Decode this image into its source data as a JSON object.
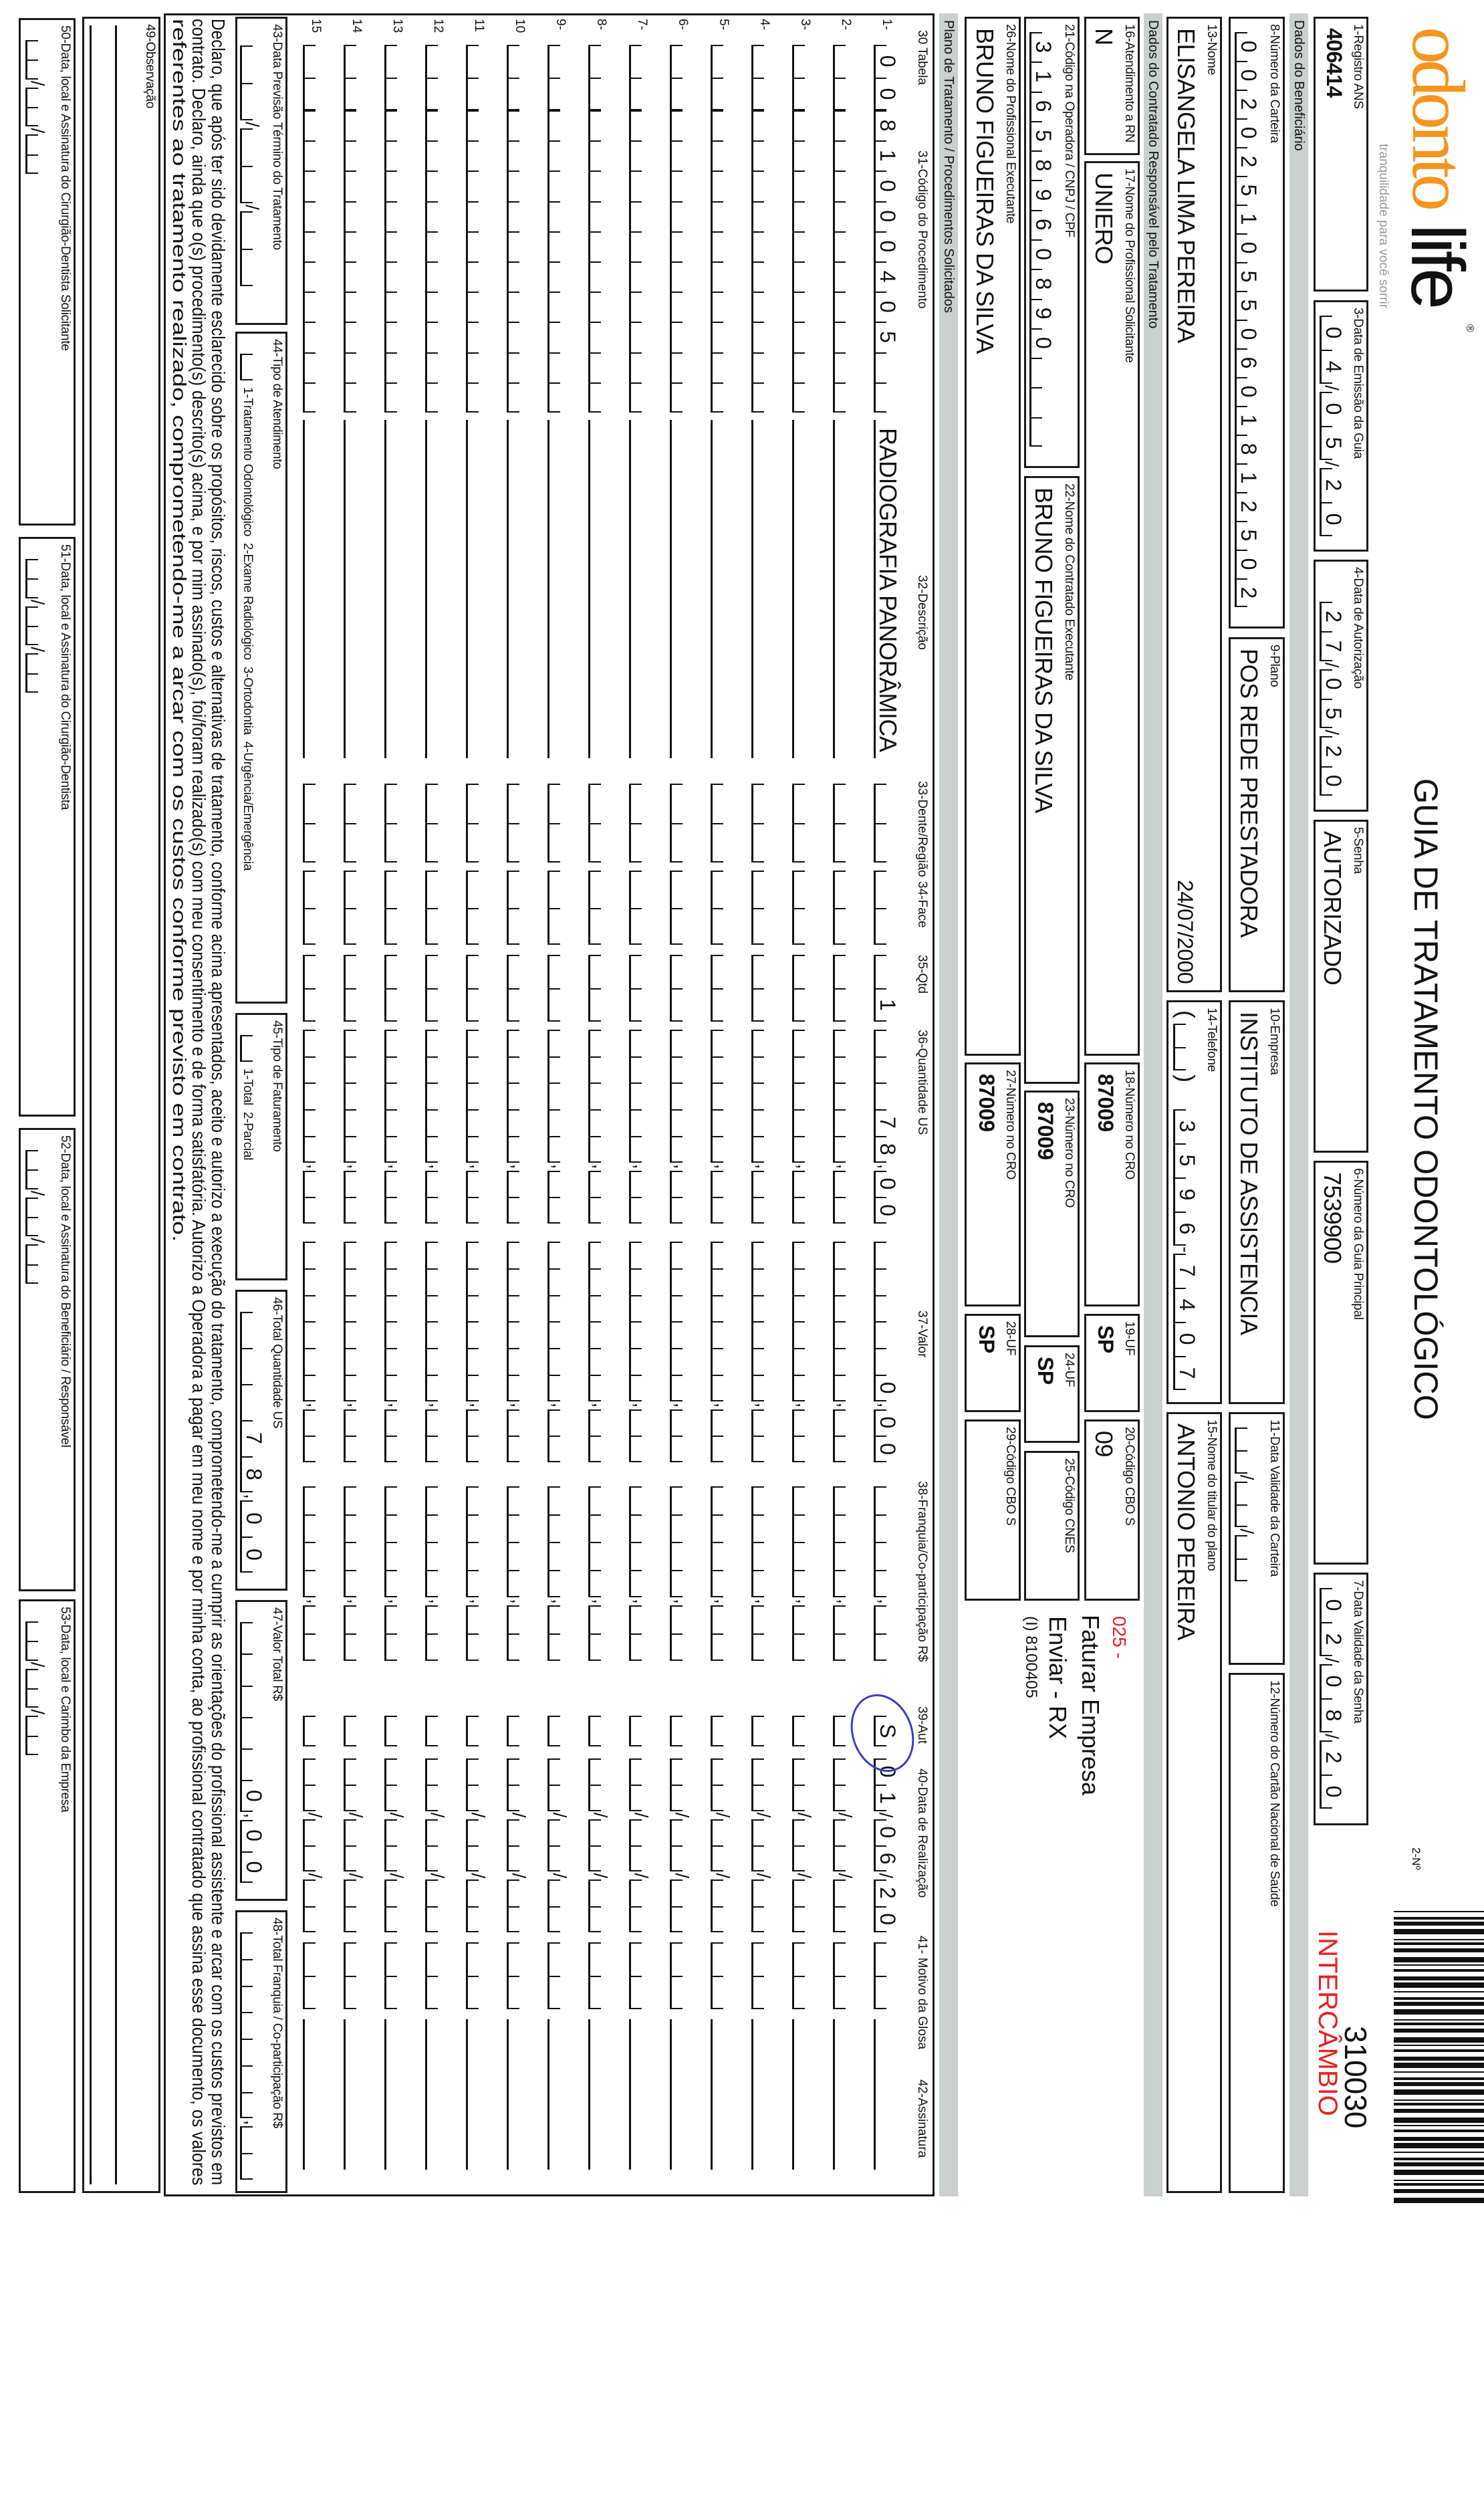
{
  "header": {
    "logo_brand_part1": "odonto",
    "logo_brand_part2": "life",
    "logo_registered": "®",
    "logo_tagline": "tranquilidade para você sorrir",
    "title": "GUIA DE TRATAMENTO ODONTOLÓGICO",
    "guide_number_label": "2-Nº",
    "guide_number": "310030",
    "exchange_label": "INTERCÂMBIO"
  },
  "colors": {
    "brand_orange": "#f7941d",
    "band_gray": "#c9d0cd",
    "stamp_red": "#e8201e",
    "pen_blue": "#3a3fc4"
  },
  "guide": {
    "registro_ans": {
      "label": "1-Registro ANS",
      "value": "406414"
    },
    "data_emissao": {
      "label": "3-Data de Emissão da Guia",
      "value": "04/05/20"
    },
    "data_autorizacao": {
      "label": "4-Data de Autorização",
      "value": "27/05/20"
    },
    "senha": {
      "label": "5-Senha",
      "value": "AUTORIZADO"
    },
    "guia_principal": {
      "label": "6-Número da Guia Principal",
      "value": "7539900"
    },
    "validade_senha": {
      "label": "7-Data Validade da Senha",
      "value": "02/08/20"
    }
  },
  "beneficiario": {
    "section_title": "Dados do Beneficiário",
    "carteira": {
      "label": "8-Número da Carteira",
      "value": "00202510550601812502"
    },
    "plano": {
      "label": "9-Plano",
      "value": "POS REDE PRESTADORA"
    },
    "empresa": {
      "label": "10-Empresa",
      "value": "INSTITUTO DE ASSISTENCIA"
    },
    "validade_carteira": {
      "label": "11-Data Validade da Carteira",
      "value": ""
    },
    "cns": {
      "label": "12-Número do Cartão Nacional de Saúde",
      "value": ""
    },
    "nome": {
      "label": "13-Nome",
      "value": "ELISANGELA LIMA PEREIRA",
      "birth_date": "24/07/2000"
    },
    "telefone": {
      "label": "14-Telefone",
      "ddd": "",
      "value": "3596-7407",
      "open_paren": "(",
      "close_paren": ")"
    },
    "titular": {
      "label": "15-Nome do titular do plano",
      "value": "ANTONIO PEREIRA"
    }
  },
  "contratado": {
    "section_title": "Dados do Contratado Responsável pelo Tratamento",
    "atendimento_rn": {
      "label": "16-Atendimento a RN",
      "value": "N"
    },
    "profissional_solicitante": {
      "label": "17-Nome do Profissional Solicitante",
      "value": "UNIERO"
    },
    "cro_solicitante": {
      "label": "18-Número no CRO",
      "value": "87009"
    },
    "uf_solicitante": {
      "label": "19-UF",
      "value": "SP"
    },
    "cbo_solicitante": {
      "label": "20-Código CBO S",
      "value": "09"
    },
    "codigo_operadora": {
      "label": "21-Código na Operadora / CNPJ / CPF",
      "value": "31658960890"
    },
    "contratado_executante": {
      "label": "22-Nome do Contratado Executante",
      "value": "BRUNO FIGUEIRAS DA SILVA"
    },
    "cro_contratado": {
      "label": "23-Número no CRO",
      "value": "87009"
    },
    "uf_contratado": {
      "label": "24-UF",
      "value": "SP"
    },
    "cnes": {
      "label": "25-Código CNES",
      "value": ""
    },
    "profissional_executante": {
      "label": "26-Nome do Profissional Executante",
      "value": "BRUNO FIGUEIRAS DA SILVA"
    },
    "cro_executante": {
      "label": "27-Número no CRO",
      "value": "87009"
    },
    "uf_executante": {
      "label": "28-UF",
      "value": "SP"
    },
    "cbo_executante": {
      "label": "29-Código CBO S",
      "value": ""
    }
  },
  "annotations": {
    "code": "025 -",
    "line1": "Faturar Empresa",
    "line2": "Enviar - RX",
    "line3": "(I) 8100405"
  },
  "procedimentos": {
    "section_title": "Plano de Tratamento / Procedimentos Solicitados",
    "headers": {
      "tabela": "30 Tabela",
      "codigo": "31-Código do Procedimento",
      "descricao": "32-Descrição",
      "dente": "33-Dente/Região",
      "face": "34-Face",
      "qtd": "35-Qtd",
      "quantidade_us": "36-Quantidade US",
      "valor": "37-Valor",
      "franquia": "38-Franquia/Co-participação R$",
      "aut": "39-Aut",
      "data_realizacao": "40-Data de Realização",
      "glosa": "41- Motivo da Glosa",
      "assinatura": "42-Assinatura"
    },
    "rows": [
      {
        "n": "1-",
        "tabela": "00",
        "codigo": "81000405",
        "descricao": "RADIOGRAFIA PANORÂMICA",
        "dente": "",
        "face": "",
        "qtd": "1",
        "quantidade_us": "78,00",
        "valor": "0,00",
        "franquia": "",
        "aut": "S",
        "data_realizacao": "01/06/20",
        "glosa": ""
      },
      {
        "n": "2-"
      },
      {
        "n": "3-"
      },
      {
        "n": "4-"
      },
      {
        "n": "5-"
      },
      {
        "n": "6-"
      },
      {
        "n": "7-"
      },
      {
        "n": "8-"
      },
      {
        "n": "9-"
      },
      {
        "n": "10"
      },
      {
        "n": "11"
      },
      {
        "n": "12"
      },
      {
        "n": "13"
      },
      {
        "n": "14"
      },
      {
        "n": "15"
      }
    ]
  },
  "totais": {
    "previsao_termino": {
      "label": "43-Data Previsão Término do Tratamento",
      "value": ""
    },
    "tipo_atendimento": {
      "label": "44-Tipo de Atendimento",
      "value": "",
      "options": "1-Tratamento Odontológico  2-Exame Radiológico  3-Ortodontia  4-Urgência/Emergência"
    },
    "tipo_faturamento": {
      "label": "45-Tipo de Faturamento",
      "value": "",
      "options": "1-Total  2-Parcial"
    },
    "total_quantidade_us": {
      "label": "46-Total Quantidade US",
      "value": "78,00"
    },
    "valor_total": {
      "label": "47-Valor Total R$",
      "value": "0,00"
    },
    "total_franquia": {
      "label": "48-Total Franquia / Co-participação R$",
      "value": ""
    }
  },
  "declaracao": [
    "Declaro, que após ter sido devidamente esclarecido sobre os propósitos, riscos, custos e alternativas de tratamento, conforme acima apresentados, aceito e autorizo a execução do tratamento, comprometendo-me a cumprir as orientações do profissional assistente e arcar com os custos previstos em",
    "contrato. Declaro, ainda que o(s) procedimento(s) descrito(s) acima, e por mim assinado(s), foi/foram realizado(s) com meu consentimento e de forma satisfatória. Autorizo a Operadora a pagar em meu nome e por minha conta, ao profissional contratado que assina esse documento, os valores",
    "referentes ao tratamento realizado, comprometendo-me a arcar com os custos conforme previsto em contrato."
  ],
  "observacao": {
    "label": "49-Observação",
    "value": ""
  },
  "assinaturas": {
    "cirurgiao_solicitante": {
      "label": "50-Data, local e Assinatura do Cirurgião-Dentista Solicitante",
      "value": ""
    },
    "cirurgiao": {
      "label": "51-Data, local e Assinatura do Cirurgião-Dentista",
      "value": ""
    },
    "beneficiario": {
      "label": "52-Data, local e Assinatura do Beneficiário / Responsável",
      "value": ""
    },
    "empresa": {
      "label": "53-Data, local e Carimbo da Empresa",
      "value": ""
    }
  }
}
